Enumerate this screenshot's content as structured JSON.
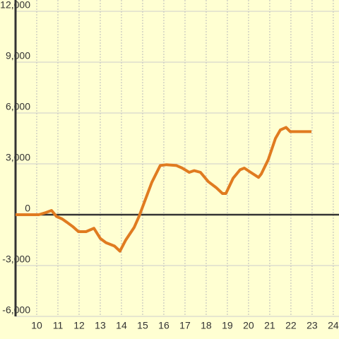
{
  "chart_data": {
    "type": "line",
    "x": [
      9.0,
      10.1,
      10.43,
      10.7,
      10.93,
      11.2,
      11.43,
      11.7,
      11.97,
      12.33,
      12.7,
      13.0,
      13.27,
      13.67,
      13.93,
      14.2,
      14.6,
      14.83,
      15.1,
      15.43,
      15.83,
      16.13,
      16.6,
      16.87,
      17.2,
      17.43,
      17.73,
      18.1,
      18.47,
      18.77,
      18.93,
      19.27,
      19.6,
      19.8,
      20.1,
      20.47,
      20.6,
      20.93,
      21.27,
      21.5,
      21.77,
      21.97,
      22.97
    ],
    "series": [
      {
        "color": "#e07b20",
        "values": [
          0,
          0,
          125,
          250,
          -100,
          -250,
          -450,
          -700,
          -1000,
          -1000,
          -800,
          -1400,
          -1650,
          -1850,
          -2150,
          -1500,
          -750,
          -100,
          800,
          1900,
          2900,
          2950,
          2900,
          2750,
          2500,
          2600,
          2500,
          1950,
          1600,
          1250,
          1250,
          2150,
          2650,
          2750,
          2500,
          2200,
          2400,
          3250,
          4500,
          5000,
          5150,
          4900,
          4900
        ]
      }
    ],
    "xlim": [
      9,
      24.27
    ],
    "xticks": [
      10,
      11,
      12,
      13,
      14,
      15,
      16,
      17,
      18,
      19,
      20,
      21,
      22,
      23,
      24
    ],
    "ylim": [
      -6000,
      12000
    ],
    "yticks": [
      {
        "value": -6000,
        "label": "-6,000"
      },
      {
        "value": -3000,
        "label": "-3,000"
      },
      0,
      {
        "value": 3000,
        "label": "3,000"
      },
      {
        "value": 6000,
        "label": "6,000"
      },
      {
        "value": 9000,
        "label": "9,000"
      },
      {
        "value": 12000,
        "label": "12,000"
      }
    ],
    "grid": true
  }
}
